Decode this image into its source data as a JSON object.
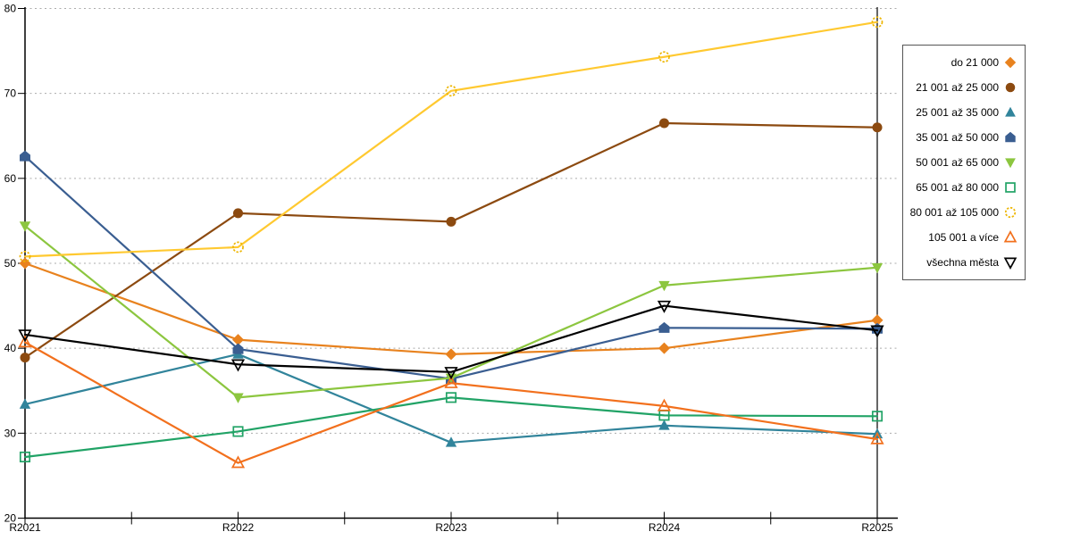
{
  "chart_data": {
    "type": "line",
    "title": "",
    "xlabel": "",
    "ylabel": "",
    "categories": [
      "R2021",
      "R2022",
      "R2023",
      "R2024",
      "R2025"
    ],
    "ylim": [
      20,
      80
    ],
    "ytick_step": 10,
    "grid": "horizontal-dashed",
    "grid_color": "#ababab",
    "axis_color": "#000000",
    "legend_position": "right-outside",
    "right_axis_at_last_category": true,
    "series": [
      {
        "name": "do 21 000",
        "marker": "diamond-filled",
        "color": "#e8821e",
        "values": [
          50.0,
          41.0,
          39.3,
          40.0,
          43.3
        ]
      },
      {
        "name": "21 001 až 25 000",
        "marker": "circle-filled",
        "color": "#8c4a10",
        "values": [
          38.9,
          55.9,
          54.9,
          66.5,
          66.0
        ]
      },
      {
        "name": "25 001 až 35 000",
        "marker": "triangle-up-filled",
        "color": "#31849b",
        "values": [
          33.4,
          39.3,
          28.9,
          30.9,
          29.9
        ]
      },
      {
        "name": "35 001 až 50 000",
        "marker": "pentagon-filled",
        "color": "#3a5e91",
        "values": [
          62.6,
          39.9,
          36.4,
          42.4,
          42.3
        ]
      },
      {
        "name": "50 001 až 65 000",
        "marker": "triangle-down-filled",
        "color": "#8cc63f",
        "values": [
          54.4,
          34.2,
          36.5,
          47.4,
          49.5
        ]
      },
      {
        "name": "65 001 až 80 000",
        "marker": "square-open",
        "color": "#21a366",
        "values": [
          27.2,
          30.2,
          34.2,
          32.1,
          32.0
        ]
      },
      {
        "name": "80 001 až 105 000",
        "marker": "circle-open-dashed",
        "color": "#edb500",
        "line_color": "#ffc930",
        "values": [
          50.8,
          51.9,
          70.3,
          74.3,
          78.4
        ]
      },
      {
        "name": "105 001 a více",
        "marker": "triangle-up-open",
        "color": "#f2701d",
        "values": [
          40.7,
          26.5,
          35.9,
          33.2,
          29.3
        ]
      },
      {
        "name": "všechna města",
        "marker": "triangle-down-open",
        "color": "#000000",
        "values": [
          41.6,
          38.1,
          37.2,
          45.0,
          42.1
        ]
      }
    ]
  }
}
